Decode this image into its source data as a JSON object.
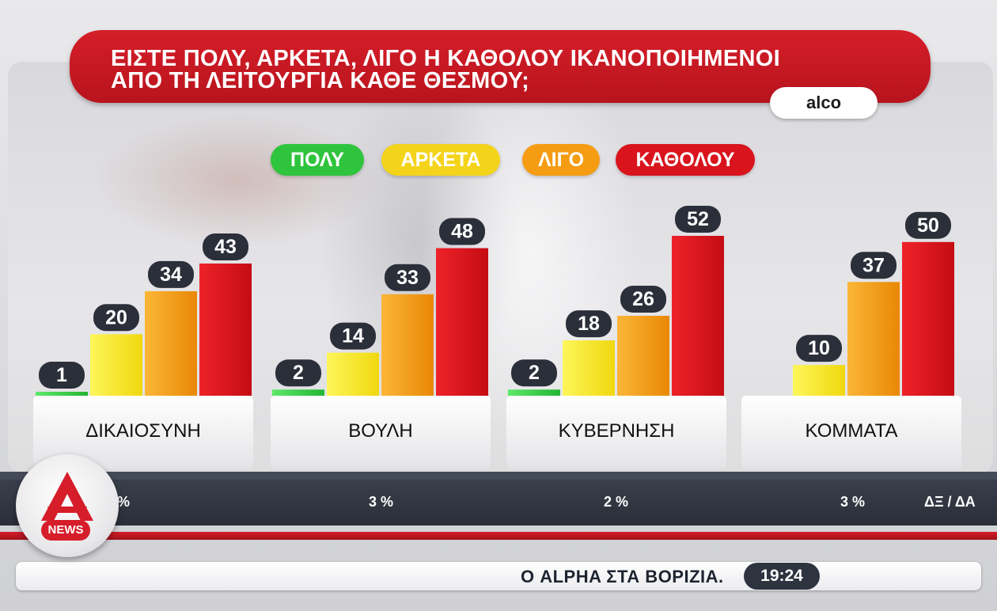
{
  "header": {
    "title_line1": "ΕΙΣΤΕ ΠΟΛΥ, ΑΡΚΕΤΑ, ΛΙΓΟ Η ΚΑΘΟΛΟΥ ΙΚΑΝΟΠΟΙΗΜΕΝΟΙ",
    "title_line2": "ΑΠΟ ΤΗ ΛΕΙΤΟΥΡΓΙΑ ΚΑΘΕ ΘΕΣΜΟΥ;",
    "source": "alco"
  },
  "colors": {
    "poly": "#3cd64b",
    "arketa": "#f6e81c",
    "ligo": "#f59c12",
    "katholou": "#d9141c",
    "title_red": "#d51e29",
    "label_dark": "#2b2f3a"
  },
  "legend": [
    {
      "label": "ΠΟΛΥ",
      "color": "#2fc43d"
    },
    {
      "label": "ΑΡΚΕΤΑ",
      "color": "#f4d41b"
    },
    {
      "label": "ΛΙΓΟ",
      "color": "#f59c12"
    },
    {
      "label": "ΚΑΘΟΛΟΥ",
      "color": "#d9141c"
    }
  ],
  "chart_data": {
    "type": "bar",
    "categories": [
      "ΔΙΚΑΙΟΣΥΝΗ",
      "ΒΟΥΛΗ",
      "ΚΥΒΕΡΝΗΣΗ",
      "ΚΟΜΜΑΤΑ"
    ],
    "series": [
      {
        "name": "ΠΟΛΥ",
        "values": [
          1,
          2,
          2,
          0
        ]
      },
      {
        "name": "ΑΡΚΕΤΑ",
        "values": [
          20,
          14,
          18,
          10
        ]
      },
      {
        "name": "ΛΙΓΟ",
        "values": [
          34,
          33,
          26,
          37
        ]
      },
      {
        "name": "ΚΑΘΟΛΟΥ",
        "values": [
          43,
          48,
          52,
          50
        ]
      }
    ],
    "value_labels_shown": [
      [
        true,
        true,
        true,
        true
      ],
      [
        true,
        true,
        true,
        true
      ],
      [
        true,
        true,
        true,
        true
      ],
      [
        false,
        true,
        true,
        true
      ]
    ],
    "ylim": [
      0,
      55
    ],
    "grid": false,
    "legend_position": "top-center",
    "dont_know_labels": [
      "%",
      "3 %",
      "2 %",
      "3 %"
    ],
    "dont_know_title": "ΔΞ / ΔΑ"
  },
  "ticker": {
    "text": "Ο ALPHA ΣΤΑ ΒΟΡΙΖΙΑ.",
    "time": "19:24"
  },
  "logo": {
    "label": "NEWS"
  }
}
